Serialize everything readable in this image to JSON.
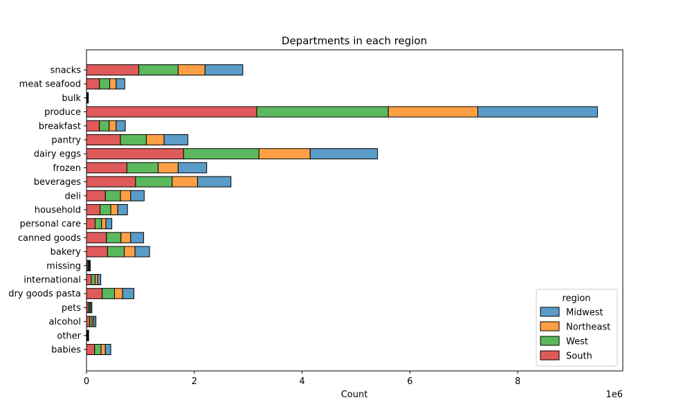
{
  "chart_data": {
    "type": "bar",
    "orientation": "horizontal",
    "stacked": true,
    "title": "Departments in each region",
    "xlabel": "Count",
    "ylabel": "",
    "x_scale_label": "1e6",
    "xlim": [
      0,
      9950000
    ],
    "xticks": [
      0,
      2000000,
      4000000,
      6000000,
      8000000
    ],
    "xtick_labels": [
      "0",
      "2",
      "4",
      "6",
      "8"
    ],
    "grid": false,
    "legend": {
      "title": "region",
      "placement": "lower-right"
    },
    "categories": [
      "snacks",
      "meat seafood",
      "bulk",
      "produce",
      "breakfast",
      "pantry",
      "dairy eggs",
      "frozen",
      "beverages",
      "deli",
      "household",
      "personal care",
      "canned goods",
      "bakery",
      "missing",
      "international",
      "dry goods pasta",
      "pets",
      "alcohol",
      "other",
      "babies"
    ],
    "series": [
      {
        "name": "South",
        "color": "#e05a5a",
        "values": [
          970000,
          240000,
          11000,
          3160000,
          240000,
          630000,
          1800000,
          750000,
          910000,
          350000,
          250000,
          160000,
          370000,
          390000,
          24000,
          90000,
          290000,
          32000,
          60000,
          13000,
          150000
        ]
      },
      {
        "name": "West",
        "color": "#5cb85c",
        "values": [
          730000,
          190000,
          9000,
          2440000,
          180000,
          480000,
          1400000,
          580000,
          680000,
          280000,
          200000,
          120000,
          270000,
          310000,
          19000,
          70000,
          230000,
          28000,
          45000,
          11000,
          120000
        ]
      },
      {
        "name": "Northeast",
        "color": "#ff9f45",
        "values": [
          500000,
          120000,
          6000,
          1660000,
          130000,
          330000,
          950000,
          370000,
          470000,
          190000,
          130000,
          80000,
          180000,
          200000,
          12000,
          45000,
          150000,
          18000,
          30000,
          7000,
          80000
        ]
      },
      {
        "name": "Midwest",
        "color": "#5a9bc8",
        "values": [
          700000,
          160000,
          8000,
          2220000,
          170000,
          440000,
          1250000,
          530000,
          620000,
          250000,
          180000,
          110000,
          240000,
          270000,
          15000,
          60000,
          210000,
          22000,
          40000,
          9000,
          100000
        ]
      }
    ],
    "legend_order": [
      "Midwest",
      "Northeast",
      "West",
      "South"
    ]
  }
}
